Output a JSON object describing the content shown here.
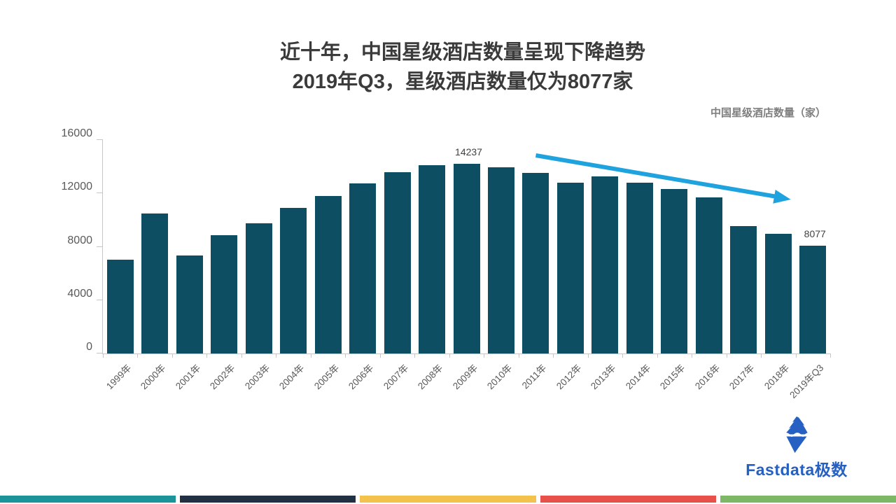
{
  "title": {
    "line1": "近十年，中国星级酒店数量呈现下降趋势",
    "line2": "2019年Q3，星级酒店数量仅为8077家"
  },
  "series_label": "中国星级酒店数量（家）",
  "chart_data": {
    "type": "bar",
    "title": "近十年，中国星级酒店数量呈现下降趋势 2019年Q3，星级酒店数量仅为8077家",
    "ylabel": "中国星级酒店数量（家）",
    "xlabel": "",
    "ylim": [
      0,
      16000
    ],
    "yticks": [
      0,
      4000,
      8000,
      12000,
      16000
    ],
    "grid": false,
    "legend_position": "none",
    "x_tick_rotation": 45,
    "categories": [
      "1999年",
      "2000年",
      "2001年",
      "2002年",
      "2003年",
      "2004年",
      "2005年",
      "2006年",
      "2007年",
      "2008年",
      "2009年",
      "2010年",
      "2011年",
      "2012年",
      "2013年",
      "2014年",
      "2015年",
      "2016年",
      "2017年",
      "2018年",
      "2019年Q3"
    ],
    "values": [
      7035,
      10481,
      7358,
      8880,
      9751,
      10888,
      11828,
      12751,
      13583,
      14099,
      14237,
      13930,
      13513,
      12807,
      13273,
      12803,
      12327,
      11685,
      9524,
      8962,
      8077
    ],
    "value_labels": [
      {
        "index": 10,
        "text": "14237"
      },
      {
        "index": 20,
        "text": "8077"
      }
    ],
    "bar_color": "#0e4e63",
    "annotation_arrow": {
      "meaning": "decline-trend-arrow",
      "color": "#1fa3de",
      "from_index": 12,
      "to_index": 19
    }
  },
  "logo": {
    "text": "Fastdata极数",
    "icon": "iceberg-icon",
    "color": "#2560c2"
  },
  "footer_colors": [
    "#1b9398",
    "#223043",
    "#f2c24d",
    "#e85149",
    "#7eb765"
  ]
}
